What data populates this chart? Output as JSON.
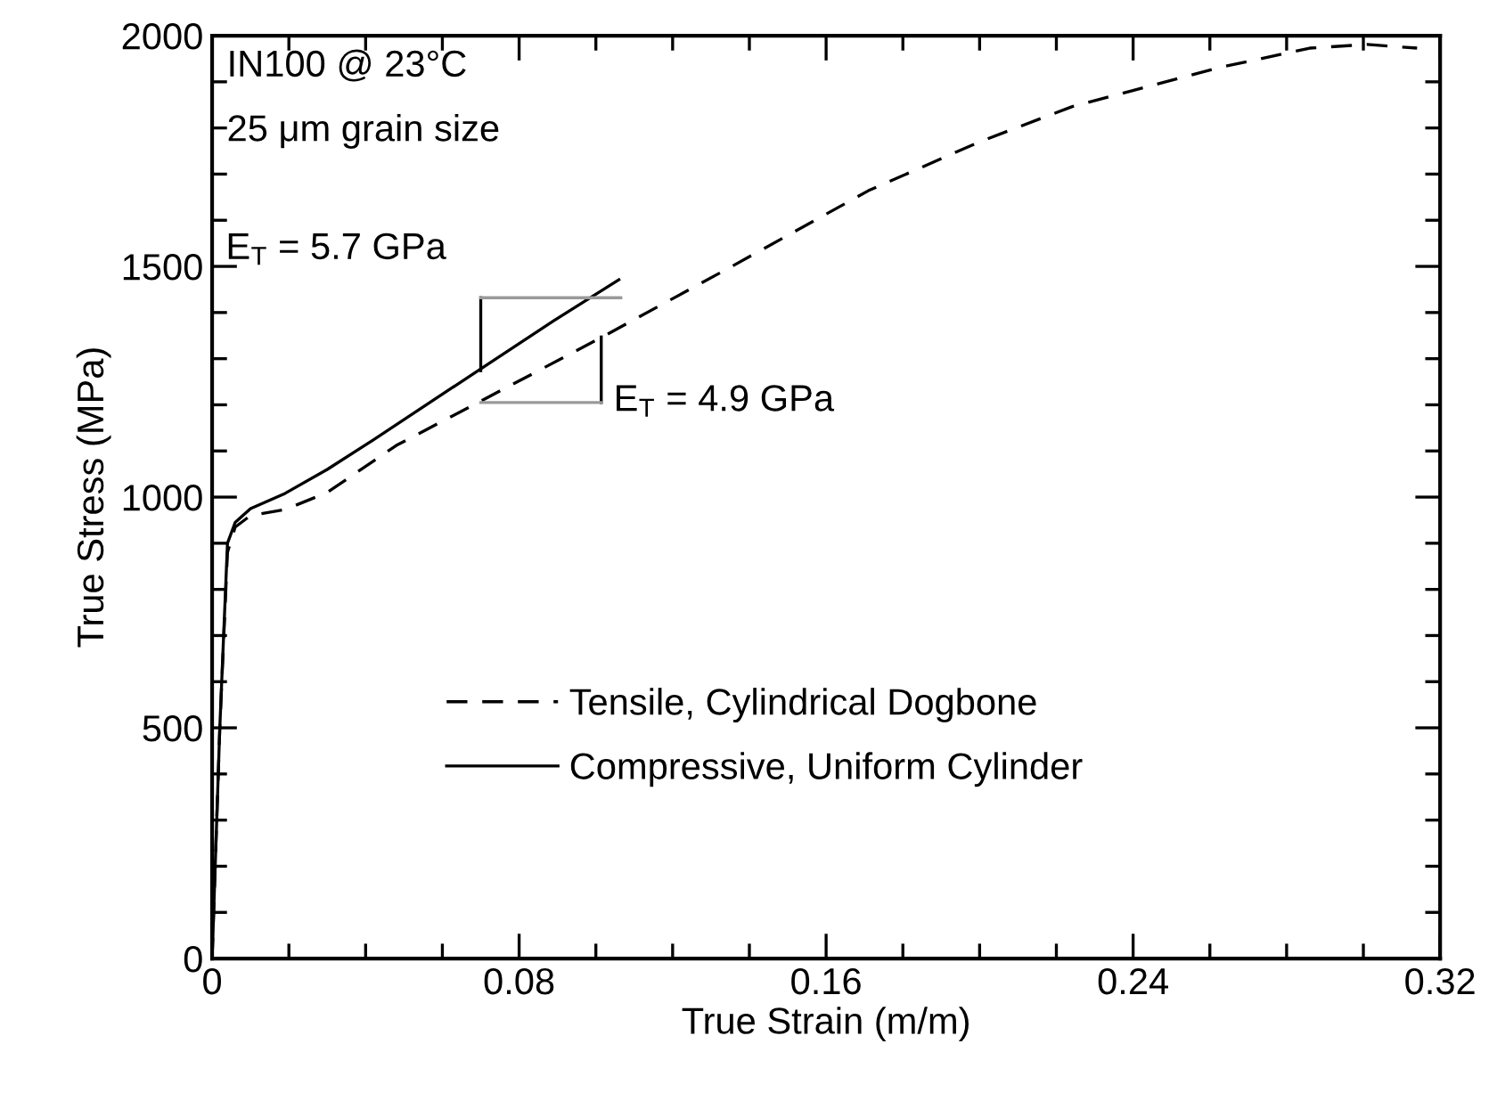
{
  "chart_data": {
    "type": "line",
    "xlabel": "True Strain (m/m)",
    "ylabel": "True Stress (MPa)",
    "xlim": [
      0,
      0.32
    ],
    "ylim": [
      0,
      2000
    ],
    "xticks": [
      {
        "value": 0,
        "label": "0"
      },
      0.08,
      0.16,
      0.24,
      0.32
    ],
    "yticks": [
      0,
      500,
      1000,
      1500,
      2000
    ],
    "grid": false,
    "legend": "bottom",
    "marker": "none",
    "series": [
      {
        "name": "Tensile, Cylindrical Dogbone",
        "color": "#000000",
        "line_style": "dashed",
        "x": [
          0,
          0.002,
          0.004,
          0.006,
          0.01,
          0.019,
          0.03,
          0.048,
          0.07,
          0.101,
          0.135,
          0.171,
          0.2,
          0.224,
          0.262,
          0.286,
          0.301,
          0.314
        ],
        "values": [
          0,
          500,
          880,
          935,
          960,
          973,
          1010,
          1112,
          1208,
          1344,
          1498,
          1664,
          1770,
          1846,
          1930,
          1973,
          1981,
          1973
        ]
      },
      {
        "name": "Compressive, Uniform Cylinder",
        "color": "#000000",
        "line_style": "solid",
        "x": [
          0,
          0.002,
          0.004,
          0.006,
          0.01,
          0.019,
          0.03,
          0.042,
          0.07,
          0.089,
          0.106
        ],
        "values": [
          0,
          500,
          900,
          945,
          975,
          1008,
          1060,
          1124,
          1278,
          1382,
          1471
        ]
      }
    ],
    "annotations": [
      "IN100 @ 23°C",
      "25 μm grain size",
      {
        "text": "E$_{T}$ = 5.7 GPa",
        "x": 0.07,
        "y": 1274
      },
      {
        "text": "E$_{T}$ = 4.9 GPa",
        "x": 0.1014,
        "y": 1347
      }
    ]
  }
}
